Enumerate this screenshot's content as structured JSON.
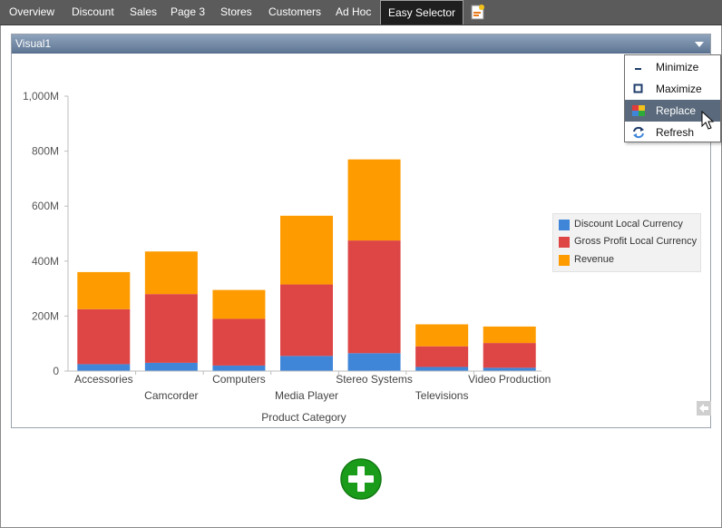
{
  "tabs": [
    {
      "label": "Overview",
      "active": false
    },
    {
      "label": "Discount",
      "active": false
    },
    {
      "label": "Sales",
      "active": false
    },
    {
      "label": "Page 3",
      "active": false
    },
    {
      "label": "Stores",
      "active": false
    },
    {
      "label": "Customers",
      "active": false
    },
    {
      "label": "Ad Hoc",
      "active": false
    },
    {
      "label": "Easy Selector",
      "active": true
    }
  ],
  "new_page_icon": "new-page-icon",
  "visual": {
    "title": "Visual1",
    "dropdown_icon": "dropdown-arrow-icon"
  },
  "context_menu": {
    "items": [
      {
        "label": "Minimize",
        "icon": "minimize-icon",
        "hover": false
      },
      {
        "label": "Maximize",
        "icon": "maximize-icon",
        "hover": false
      },
      {
        "label": "Replace",
        "icon": "replace-icon",
        "hover": true
      },
      {
        "label": "Refresh",
        "icon": "refresh-icon",
        "hover": false
      }
    ]
  },
  "chart_data": {
    "type": "bar",
    "stacked": true,
    "categories": [
      "Accessories",
      "Camcorder",
      "Computers",
      "Media Player",
      "Stereo Systems",
      "Televisions",
      "Video Production"
    ],
    "series": [
      {
        "name": "Discount Local Currency",
        "color": "#3f86d9",
        "values": [
          25,
          30,
          20,
          55,
          65,
          15,
          12
        ]
      },
      {
        "name": "Gross Profit Local Currency",
        "color": "#de4545",
        "values": [
          200,
          250,
          170,
          260,
          410,
          75,
          90
        ]
      },
      {
        "name": "Revenue",
        "color": "#fe9b00",
        "values": [
          135,
          155,
          105,
          250,
          295,
          80,
          60
        ]
      }
    ],
    "xlabel": "Product Category",
    "ylabel": "",
    "ylim": [
      0,
      1000
    ],
    "yticks": [
      0,
      200,
      400,
      600,
      800,
      1000
    ],
    "ytick_labels": [
      "0",
      "200M",
      "400M",
      "600M",
      "800M",
      "1,000M"
    ],
    "legend_position": "right",
    "grid": false
  },
  "colors": {
    "tab_bar": "#5b5b5b",
    "header": "#6f86a3",
    "menu_hover": "#5a6a7c",
    "add_button": "#1a9c1a"
  },
  "nav_arrow_icon": "left-arrow-icon",
  "add_button_icon": "plus-icon"
}
